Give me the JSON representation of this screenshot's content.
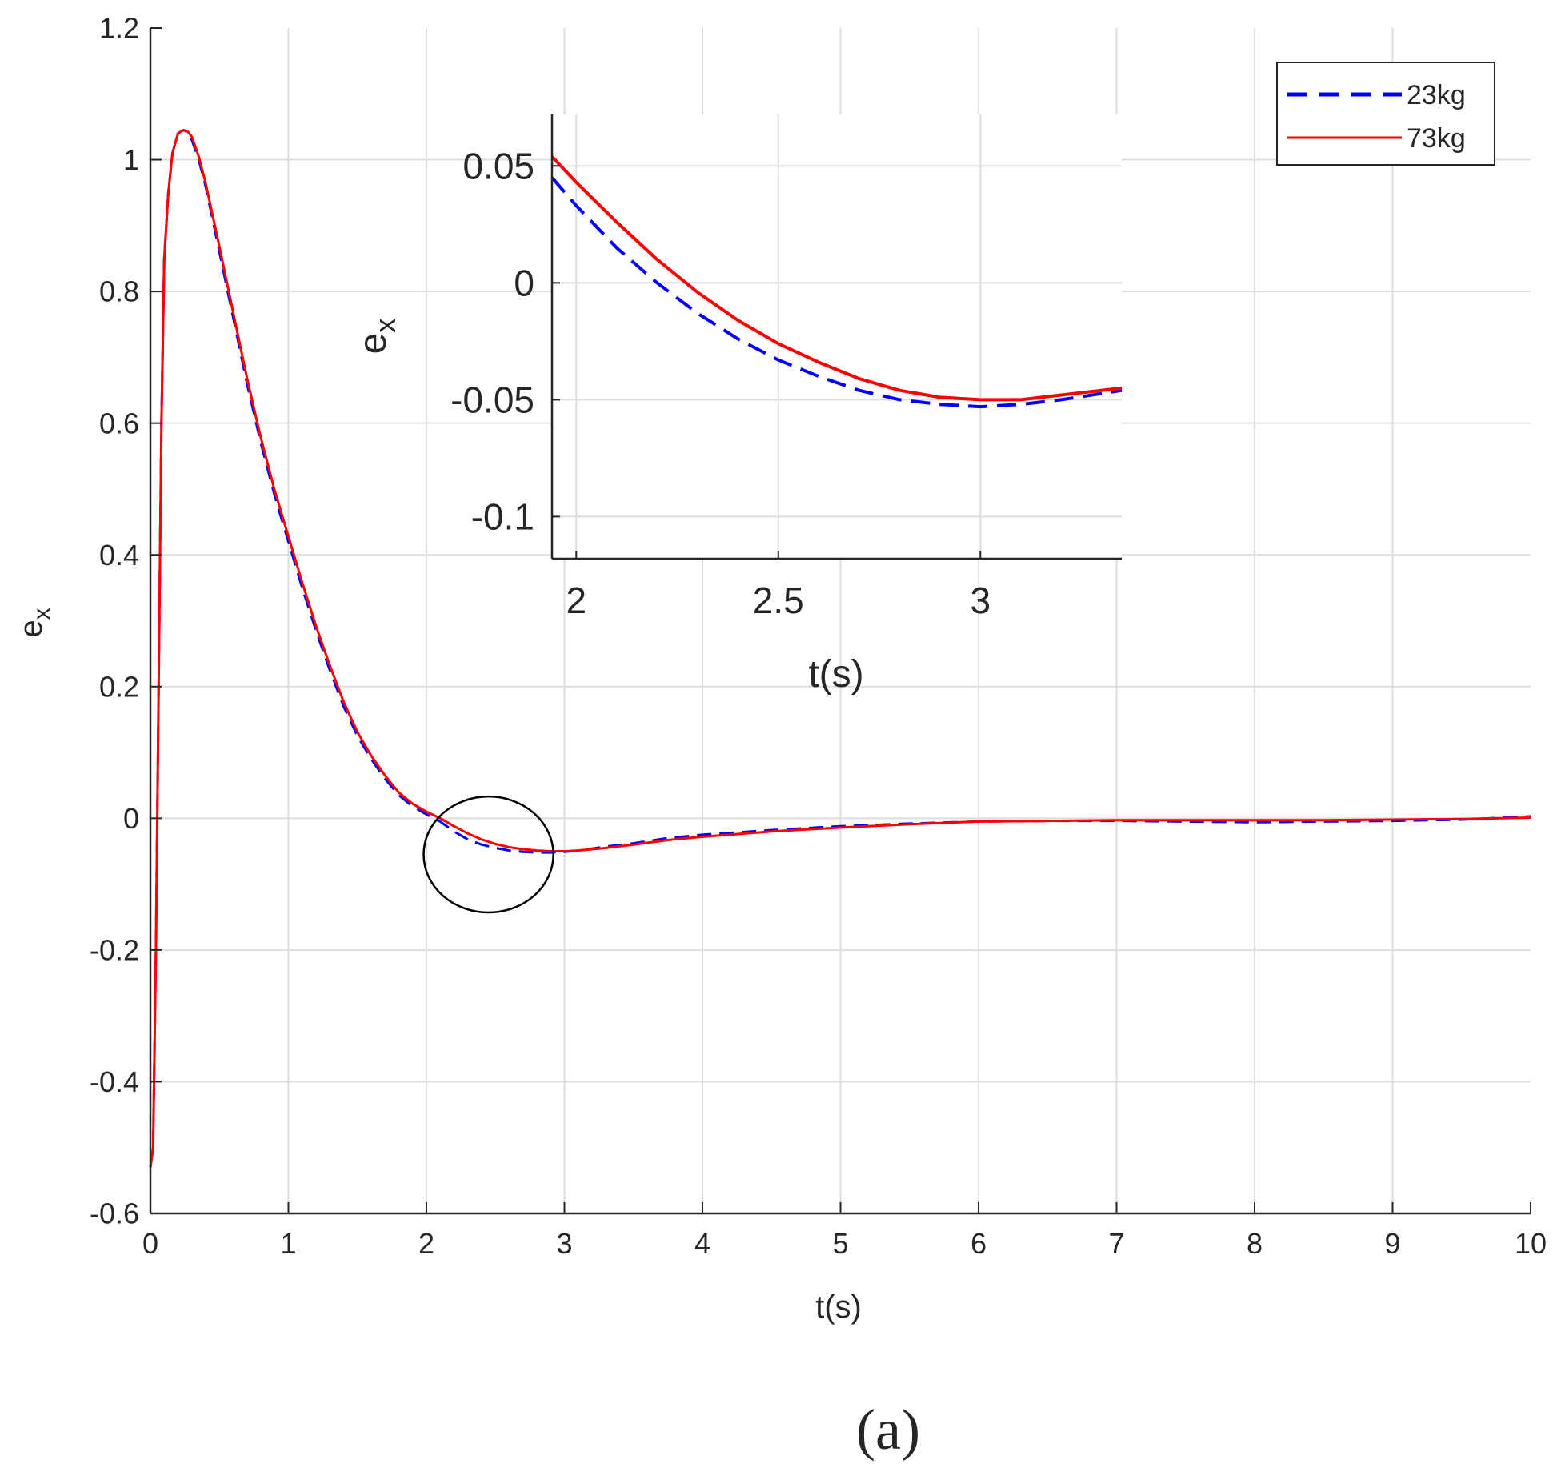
{
  "caption": "(a)",
  "chart_data": [
    {
      "id": "main",
      "type": "line",
      "xlabel": "t(s)",
      "ylabel": "e",
      "ylabel_subscript": "x",
      "xlim": [
        0,
        10
      ],
      "ylim": [
        -0.6,
        1.2
      ],
      "xticks": [
        0,
        1,
        2,
        3,
        4,
        5,
        6,
        7,
        8,
        9,
        10
      ],
      "xtick_labels": [
        "0",
        "1",
        "2",
        "3",
        "4",
        "5",
        "6",
        "7",
        "8",
        "9",
        "10"
      ],
      "yticks": [
        -0.6,
        -0.4,
        -0.2,
        0,
        0.2,
        0.4,
        0.6,
        0.8,
        1,
        1.2
      ],
      "ytick_labels": [
        "-0.6",
        "-0.4",
        "-0.2",
        "0",
        "0.2",
        "0.4",
        "0.6",
        "0.8",
        "1",
        "1.2"
      ],
      "grid": true,
      "legend": {
        "placement": "top-right",
        "entries": [
          {
            "label": "23kg",
            "color": "#0000ff",
            "style": "dashed"
          },
          {
            "label": "73kg",
            "color": "#ff0000",
            "style": "solid"
          }
        ]
      },
      "annotation": {
        "shape": "ellipse",
        "center": [
          2.45,
          -0.055
        ],
        "radius_x": 0.47,
        "radius_y": 0.088
      },
      "series": [
        {
          "name": "23kg",
          "color": "#0000ff",
          "style": "dashed",
          "x": [
            0,
            0.02,
            0.04,
            0.06,
            0.08,
            0.1,
            0.13,
            0.16,
            0.2,
            0.24,
            0.27,
            0.3,
            0.35,
            0.4,
            0.5,
            0.6,
            0.7,
            0.8,
            0.9,
            1.0,
            1.1,
            1.2,
            1.3,
            1.4,
            1.5,
            1.6,
            1.7,
            1.8,
            1.9,
            2.0,
            2.1,
            2.2,
            2.3,
            2.4,
            2.5,
            2.6,
            2.7,
            2.8,
            2.9,
            3.0,
            3.1,
            3.2,
            3.3,
            3.5,
            3.75,
            4.0,
            4.5,
            5.0,
            5.5,
            6.0,
            6.5,
            7.0,
            7.5,
            8.0,
            8.5,
            9.0,
            9.5,
            10.0
          ],
          "y": [
            -0.53,
            -0.5,
            -0.2,
            0.2,
            0.6,
            0.85,
            0.95,
            1.01,
            1.04,
            1.045,
            1.042,
            1.03,
            1.0,
            0.96,
            0.86,
            0.76,
            0.66,
            0.57,
            0.49,
            0.42,
            0.35,
            0.285,
            0.225,
            0.17,
            0.125,
            0.09,
            0.06,
            0.035,
            0.018,
            0.006,
            -0.005,
            -0.02,
            -0.032,
            -0.04,
            -0.045,
            -0.049,
            -0.051,
            -0.052,
            -0.052,
            -0.051,
            -0.049,
            -0.046,
            -0.043,
            -0.038,
            -0.03,
            -0.025,
            -0.018,
            -0.012,
            -0.008,
            -0.005,
            -0.004,
            -0.004,
            -0.005,
            -0.006,
            -0.005,
            -0.004,
            -0.002,
            0.003
          ]
        },
        {
          "name": "73kg",
          "color": "#ff0000",
          "style": "solid",
          "x": [
            0,
            0.02,
            0.04,
            0.06,
            0.08,
            0.1,
            0.13,
            0.16,
            0.2,
            0.24,
            0.27,
            0.3,
            0.35,
            0.4,
            0.5,
            0.6,
            0.7,
            0.8,
            0.9,
            1.0,
            1.1,
            1.2,
            1.3,
            1.4,
            1.5,
            1.6,
            1.7,
            1.8,
            1.9,
            2.0,
            2.1,
            2.2,
            2.3,
            2.4,
            2.5,
            2.6,
            2.7,
            2.8,
            2.9,
            3.0,
            3.1,
            3.2,
            3.3,
            3.5,
            3.75,
            4.0,
            4.5,
            5.0,
            5.5,
            6.0,
            6.5,
            7.0,
            7.5,
            8.0,
            8.5,
            9.0,
            9.5,
            10.0
          ],
          "y": [
            -0.53,
            -0.5,
            -0.2,
            0.2,
            0.6,
            0.85,
            0.95,
            1.01,
            1.04,
            1.045,
            1.043,
            1.035,
            1.005,
            0.965,
            0.868,
            0.768,
            0.668,
            0.578,
            0.498,
            0.428,
            0.358,
            0.292,
            0.232,
            0.177,
            0.131,
            0.095,
            0.065,
            0.039,
            0.022,
            0.01,
            0.0,
            -0.012,
            -0.023,
            -0.032,
            -0.039,
            -0.044,
            -0.047,
            -0.049,
            -0.05,
            -0.05,
            -0.049,
            -0.047,
            -0.045,
            -0.04,
            -0.033,
            -0.028,
            -0.02,
            -0.014,
            -0.009,
            -0.005,
            -0.004,
            -0.003,
            -0.003,
            -0.003,
            -0.003,
            -0.002,
            -0.001,
            0.001
          ]
        }
      ]
    },
    {
      "id": "inset",
      "type": "line",
      "xlabel": "t(s)",
      "ylabel": "e",
      "ylabel_subscript": "x",
      "xlim": [
        1.94,
        3.35
      ],
      "ylim": [
        -0.118,
        0.072
      ],
      "xticks": [
        2,
        2.5,
        3
      ],
      "xtick_labels": [
        "2",
        "2.5",
        "3"
      ],
      "yticks": [
        -0.1,
        -0.05,
        0,
        0.05
      ],
      "ytick_labels": [
        "-0.1",
        "-0.05",
        "0",
        "0.05"
      ],
      "grid": true,
      "series": [
        {
          "name": "23kg",
          "color": "#0000ff",
          "style": "dashed",
          "x": [
            1.94,
            2.0,
            2.1,
            2.2,
            2.3,
            2.4,
            2.5,
            2.6,
            2.7,
            2.8,
            2.9,
            3.0,
            3.1,
            3.2,
            3.35
          ],
          "y": [
            0.045,
            0.033,
            0.015,
            0.0,
            -0.013,
            -0.024,
            -0.033,
            -0.04,
            -0.046,
            -0.05,
            -0.052,
            -0.053,
            -0.052,
            -0.05,
            -0.046
          ]
        },
        {
          "name": "73kg",
          "color": "#ff0000",
          "style": "solid",
          "x": [
            1.94,
            2.0,
            2.1,
            2.2,
            2.3,
            2.4,
            2.5,
            2.6,
            2.7,
            2.8,
            2.9,
            3.0,
            3.1,
            3.2,
            3.35
          ],
          "y": [
            0.054,
            0.043,
            0.026,
            0.01,
            -0.004,
            -0.016,
            -0.026,
            -0.034,
            -0.041,
            -0.046,
            -0.049,
            -0.05,
            -0.05,
            -0.048,
            -0.045
          ]
        }
      ]
    }
  ]
}
